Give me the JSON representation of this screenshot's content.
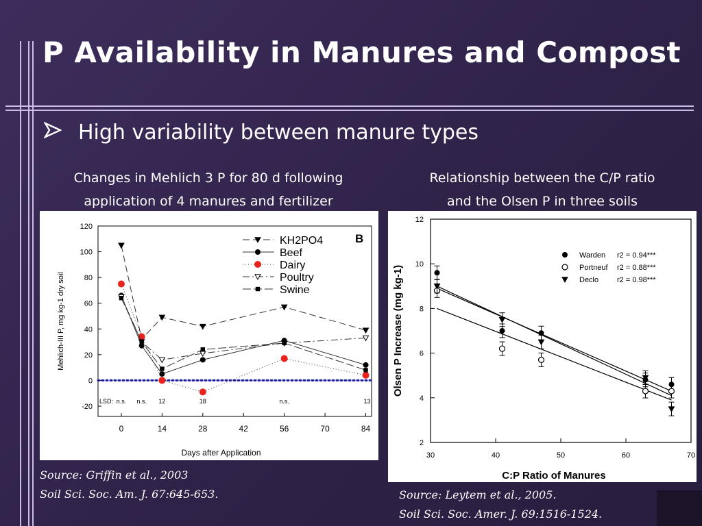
{
  "slide": {
    "title": "P Availability in Manures and Compost",
    "bullet_icon": "arrow-bullet-icon",
    "bullet": "High variability between manure types",
    "left_caption_line1": "Changes in Mehlich 3 P for 80 d following",
    "left_caption_line2": "application of 4 manures and fertilizer",
    "right_caption_line1": "Relationship between the C/P ratio",
    "right_caption_line2": "and the Olsen P in three soils",
    "left_source_line1": "Source: Griffin et al., 2003",
    "left_source_line2": "Soil Sci. Soc. Am. J. 67:645-653.",
    "right_source_line1": "Source: Leytem et al., 2005.",
    "right_source_line2": "Soil Sci. Soc. Amer. J. 69:1516-1524.",
    "colors": {
      "line_accent": "#cbbde6",
      "dairy": "#e8231e",
      "zero_line": "#1d1d9e"
    }
  },
  "chart_data": [
    {
      "type": "line",
      "panel_label": "B",
      "xlabel": "Days after Application",
      "ylabel": "Mehlich-III P, mg kg-1 dry soil",
      "xlim": [
        -8,
        86
      ],
      "ylim": [
        -28,
        120
      ],
      "xticks": [
        0,
        14,
        28,
        42,
        56,
        70,
        84
      ],
      "yticks": [
        -20,
        0,
        20,
        40,
        60,
        80,
        100,
        120
      ],
      "x": [
        0,
        7,
        14,
        28,
        56,
        84
      ],
      "series": [
        {
          "name": "KH2PO4",
          "marker": "triangle-down",
          "values": [
            105,
            32,
            49,
            42,
            57,
            39
          ]
        },
        {
          "name": "Beef",
          "marker": "circle",
          "values": [
            66,
            27,
            5,
            16,
            31,
            12
          ]
        },
        {
          "name": "Dairy",
          "marker": "circle-red",
          "values": [
            75,
            34,
            0,
            -9,
            17,
            4
          ]
        },
        {
          "name": "Poultry",
          "marker": "triangle-open",
          "values": [
            65,
            30,
            16,
            21,
            29,
            33
          ]
        },
        {
          "name": "Swine",
          "marker": "square",
          "values": [
            64,
            30,
            9,
            24,
            29,
            8
          ]
        }
      ],
      "reference_line_y": 0,
      "lsd_labels": {
        "prefix": "LSD:",
        "values": [
          "n.s.",
          "n.s.",
          "12",
          "18",
          "n.s.",
          "13"
        ],
        "x": [
          0,
          14,
          28,
          56,
          84
        ],
        "x_first_two": [
          0,
          7
        ]
      }
    },
    {
      "type": "scatter",
      "xlabel": "C:P Ratio of Manures",
      "ylabel": "Olsen P Increase (mg kg-1)",
      "xlim": [
        30,
        70
      ],
      "ylim": [
        2,
        12
      ],
      "xticks": [
        30,
        40,
        50,
        60,
        70
      ],
      "yticks": [
        2,
        4,
        6,
        8,
        10,
        12
      ],
      "series": [
        {
          "name": "Warden",
          "r2": "r2 = 0.94***",
          "marker": "circle-filled",
          "x": [
            31,
            41,
            47,
            63,
            67
          ],
          "y": [
            9.6,
            7.0,
            6.9,
            4.8,
            4.6
          ],
          "fit": [
            [
              31,
              8.0
            ],
            [
              67,
              3.9
            ]
          ]
        },
        {
          "name": "Portneuf",
          "r2": "r2 = 0.88***",
          "marker": "circle-open",
          "x": [
            31,
            41,
            47,
            63,
            67
          ],
          "y": [
            8.8,
            6.2,
            5.7,
            4.3,
            4.3
          ],
          "fit": [
            [
              31,
              8.9
            ],
            [
              67,
              4.3
            ]
          ]
        },
        {
          "name": "Declo",
          "r2": "r2 = 0.98***",
          "marker": "triangle-down-filled",
          "x": [
            31,
            41,
            47,
            63,
            67
          ],
          "y": [
            9.0,
            7.5,
            6.5,
            4.9,
            3.5
          ],
          "fit": [
            [
              31,
              9.0
            ],
            [
              67,
              4.1
            ]
          ]
        }
      ]
    }
  ]
}
